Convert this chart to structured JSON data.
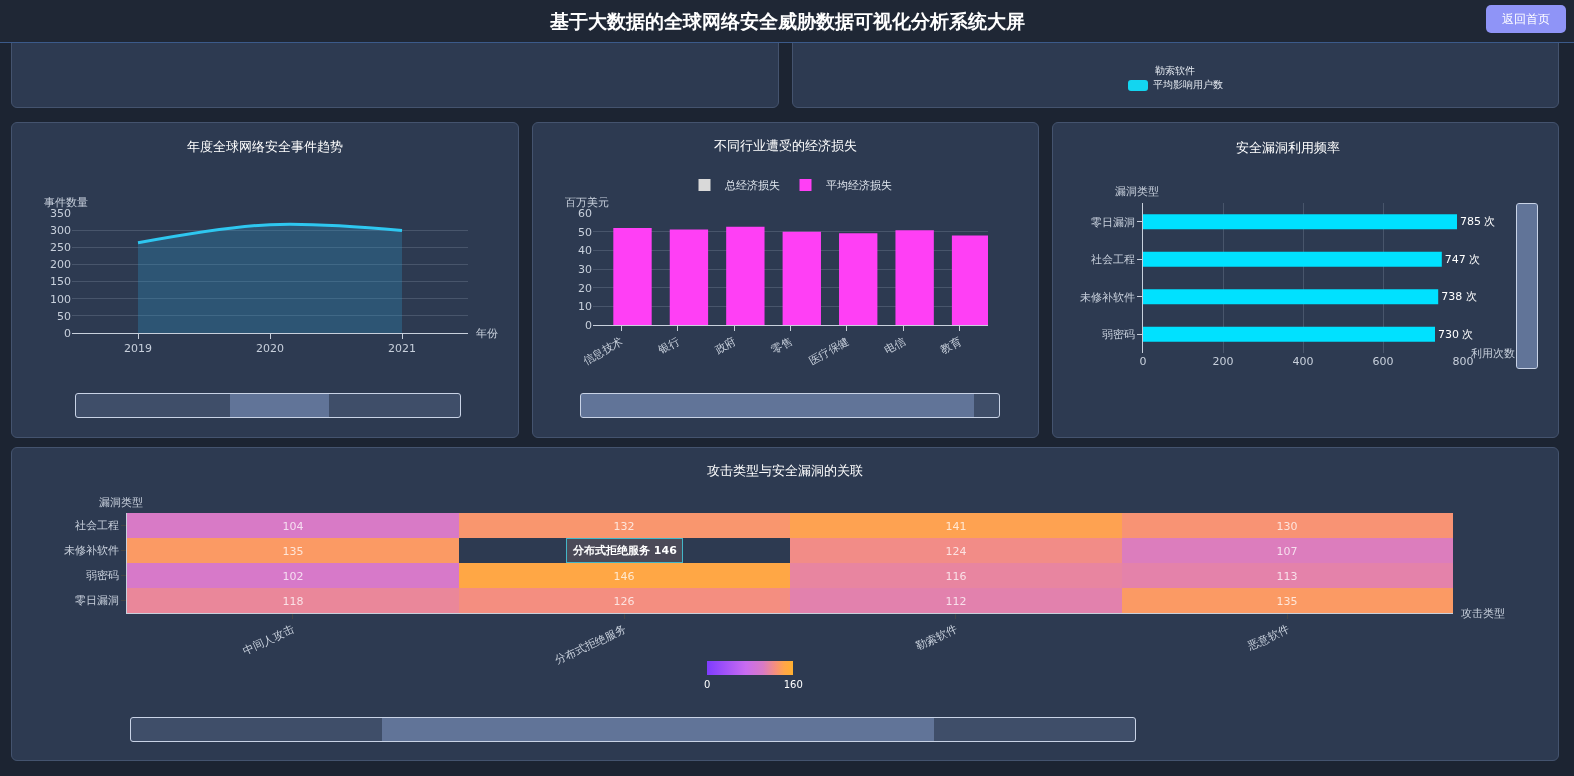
{
  "chart_data": [
    {
      "type": "other",
      "title": "基于大数据的全球网络安全威胁数据可视化分析系统大屏",
      "annotations": [
        "返回首页",
        "勒索软件"
      ],
      "series": [
        {
          "name": "平均影响用户数",
          "color": "#13d5f0"
        }
      ]
    },
    {
      "type": "area",
      "title": "年度全球网络安全事件趋势",
      "xlabel": "年份",
      "ylabel": "事件数量",
      "categories": [
        "2019",
        "2020",
        "2021"
      ],
      "series": [
        {
          "color": "#2ec7f0",
          "values": [
            263,
            316,
            299
          ]
        }
      ],
      "ylim": [
        0,
        350
      ],
      "yticks": [
        0,
        50,
        100,
        150,
        200,
        250,
        300,
        350
      ],
      "grid": "y",
      "legend": false
    },
    {
      "type": "bar",
      "title": "不同行业遭受的经济损失",
      "ylabel": "百万美元",
      "categories": [
        "信息技术",
        "银行",
        "政府",
        "零售",
        "医疗保健",
        "电信",
        "教育"
      ],
      "series": [
        {
          "name": "总经济损失",
          "color": "#d9d9d9",
          "values": [
            null,
            null,
            null,
            null,
            null,
            null,
            null
          ]
        },
        {
          "name": "平均经济损失",
          "color": "#ff3ff5",
          "values": [
            52,
            51.2,
            52.6,
            50,
            49.1,
            50.7,
            48
          ]
        }
      ],
      "ylim": [
        0,
        60
      ],
      "yticks": [
        0,
        10,
        20,
        30,
        40,
        50,
        60
      ],
      "grid": "y",
      "legend": "top"
    },
    {
      "type": "bar",
      "orientation": "horizontal",
      "title": "安全漏洞利用频率",
      "xlabel": "利用次数",
      "ylabel": "漏洞类型",
      "categories": [
        "零日漏洞",
        "社会工程",
        "未修补软件",
        "弱密码"
      ],
      "values": [
        785,
        747,
        738,
        730
      ],
      "value_labels": [
        "785 次",
        "747 次",
        "738 次",
        "730 次"
      ],
      "color": "#00e1ff",
      "xlim": [
        0,
        800
      ],
      "xticks": [
        0,
        200,
        400,
        600,
        800
      ],
      "grid": "x",
      "legend": false
    },
    {
      "type": "heatmap",
      "title": "攻击类型与安全漏洞的关联",
      "xlabel": "攻击类型",
      "ylabel": "漏洞类型",
      "categories": [
        "中间人攻击",
        "分布式拒绝服务",
        "勒索软件",
        "恶意软件"
      ],
      "y_categories": [
        "社会工程",
        "未修补软件",
        "弱密码",
        "零日漏洞"
      ],
      "cells": [
        [
          104,
          132,
          141,
          130
        ],
        [
          135,
          null,
          124,
          107
        ],
        [
          102,
          146,
          116,
          113
        ],
        [
          118,
          126,
          112,
          135
        ]
      ],
      "data_labels": true,
      "clim": [
        0,
        160
      ],
      "cticks": [
        0,
        160
      ],
      "annotations": [
        "分布式拒绝服务 146"
      ]
    }
  ]
}
